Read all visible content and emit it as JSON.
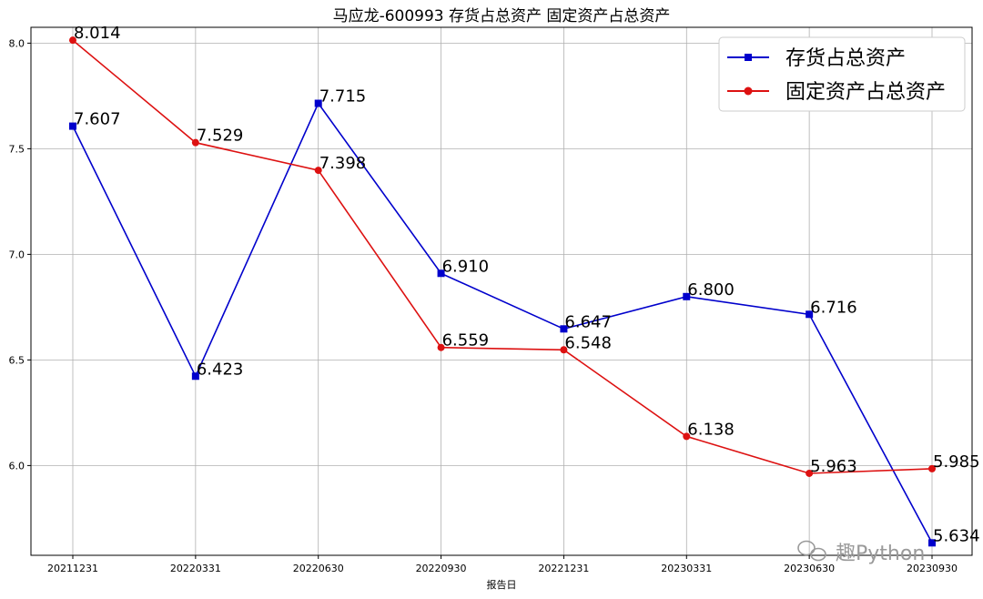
{
  "chart_data": {
    "type": "line",
    "title": "马应龙-600993 存货占总资产 固定资产占总资产",
    "xlabel": "报告日",
    "ylabel": "",
    "categories": [
      "20211231",
      "20220331",
      "20220630",
      "20220930",
      "20221231",
      "20230331",
      "20230630",
      "20230930"
    ],
    "ylim": [
      5.575,
      8.075
    ],
    "yticks": [
      "6.0",
      "6.5",
      "7.0",
      "7.5",
      "8.0"
    ],
    "grid": true,
    "legend_position": "top-right",
    "series": [
      {
        "name": "存货占总资产",
        "color": "#0000cc",
        "marker": "square",
        "values": [
          7.607,
          6.423,
          7.715,
          6.91,
          6.647,
          6.8,
          6.716,
          5.634
        ],
        "labels": [
          "7.607",
          "6.423",
          "7.715",
          "6.910",
          "6.647",
          "6.800",
          "6.716",
          "5.634"
        ]
      },
      {
        "name": "固定资产占总资产",
        "color": "#dd1111",
        "marker": "circle",
        "values": [
          8.014,
          7.529,
          7.398,
          6.559,
          6.548,
          6.138,
          5.963,
          5.985
        ],
        "labels": [
          "8.014",
          "7.529",
          "7.398",
          "6.559",
          "6.548",
          "6.138",
          "5.963",
          "5.985"
        ]
      }
    ]
  },
  "watermark": {
    "text": "趣Python",
    "icon": "wechat-icon"
  }
}
